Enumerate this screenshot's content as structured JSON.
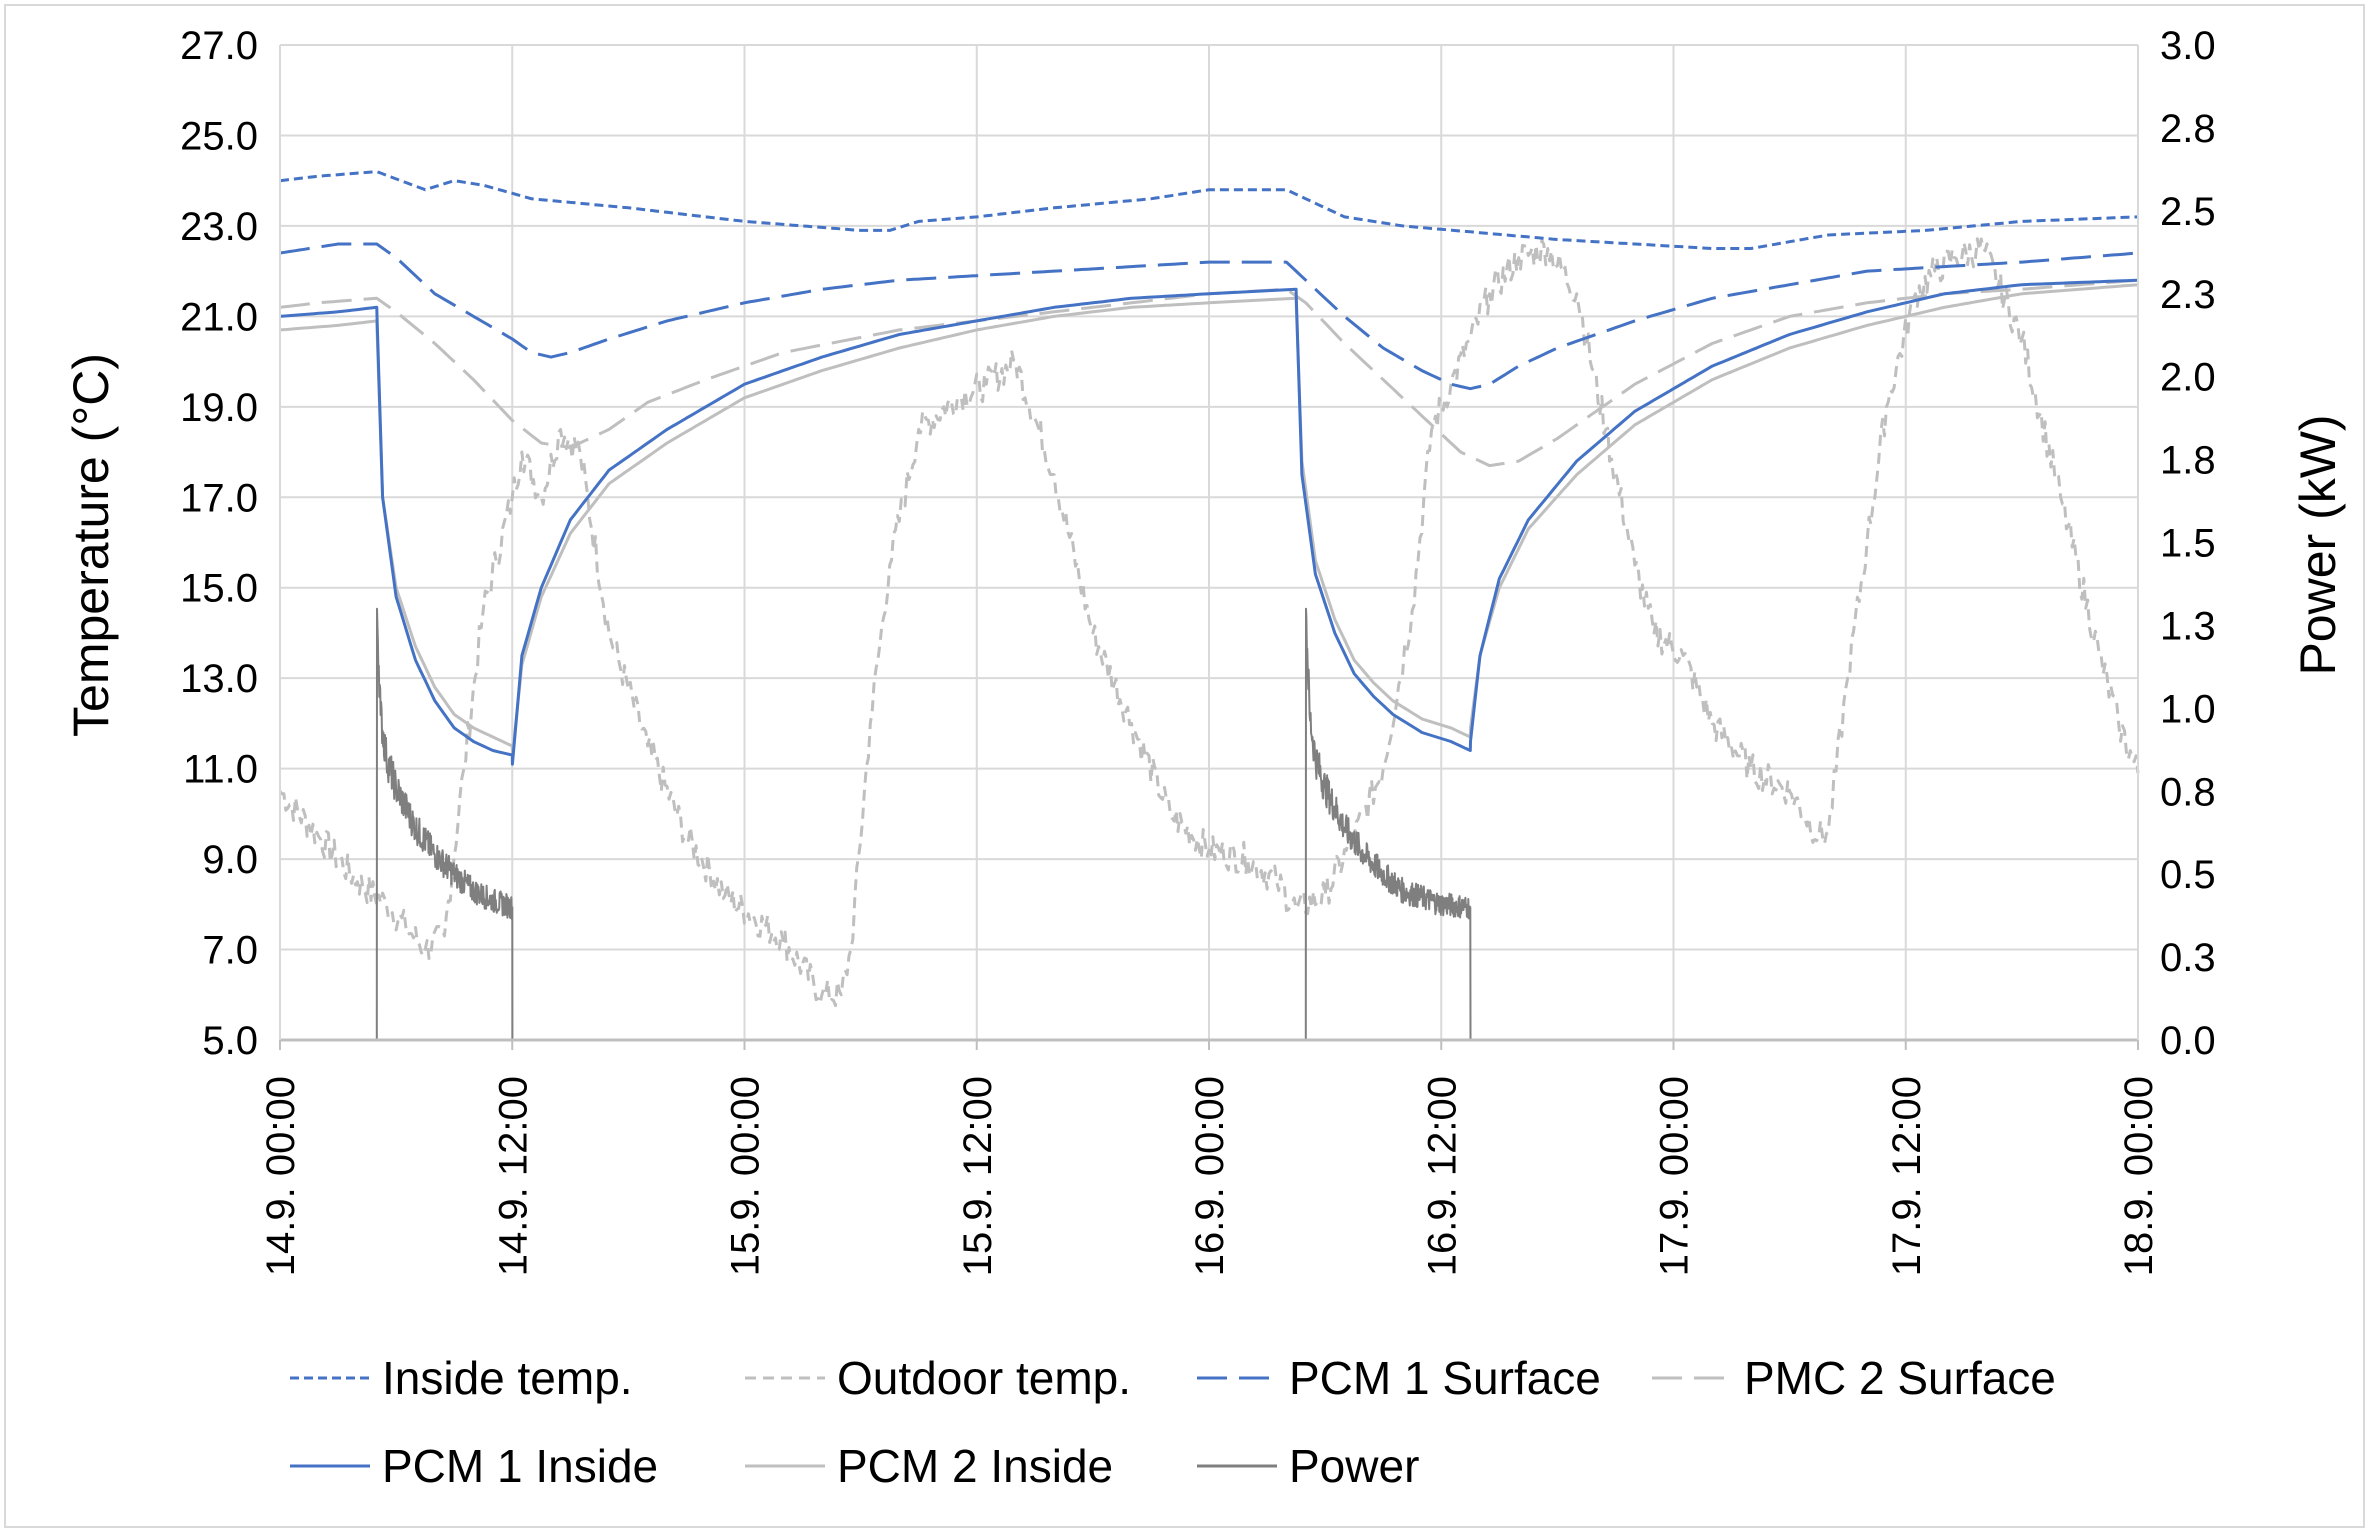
{
  "chart_data": {
    "type": "line",
    "title": "",
    "xlabel": "",
    "ylabel_left": "Temperature  (°C)",
    "ylabel_right": "Power (kW)",
    "ylim_left": [
      5,
      27
    ],
    "ylim_right": [
      0,
      3
    ],
    "yticks_left": [
      "5.0",
      "7.0",
      "9.0",
      "11.0",
      "13.0",
      "15.0",
      "17.0",
      "19.0",
      "21.0",
      "23.0",
      "25.0",
      "27.0"
    ],
    "yticks_right": [
      "0.0",
      "0.3",
      "0.5",
      "0.8",
      "1.0",
      "1.3",
      "1.5",
      "1.8",
      "2.0",
      "2.3",
      "2.5",
      "2.8",
      "3.0"
    ],
    "x_unit": "hours since 14.9. 00:00",
    "xlim": [
      0,
      96
    ],
    "xticks": [
      {
        "x": 0,
        "label": "14.9. 00:00"
      },
      {
        "x": 12,
        "label": "14.9. 12:00"
      },
      {
        "x": 24,
        "label": "15.9. 00:00"
      },
      {
        "x": 36,
        "label": "15.9. 12:00"
      },
      {
        "x": 48,
        "label": "16.9. 00:00"
      },
      {
        "x": 60,
        "label": "16.9. 12:00"
      },
      {
        "x": 72,
        "label": "17.9. 00:00"
      },
      {
        "x": 84,
        "label": "17.9. 12:00"
      },
      {
        "x": 96,
        "label": "18.9. 00:00"
      }
    ],
    "grid": true,
    "legend_position": "bottom",
    "series": [
      {
        "name": "Inside temp.",
        "axis": "left",
        "color": "#4472c4",
        "style": "dotted",
        "x": [
          0,
          2,
          5,
          7.5,
          9,
          10.5,
          13,
          18,
          24,
          30,
          31.5,
          33,
          36,
          40,
          45,
          48,
          52,
          53.5,
          55,
          58,
          66,
          74,
          76,
          80,
          85,
          90,
          96
        ],
        "y": [
          24.0,
          24.1,
          24.2,
          23.8,
          24.0,
          23.9,
          23.6,
          23.4,
          23.1,
          22.9,
          22.9,
          23.1,
          23.2,
          23.4,
          23.6,
          23.8,
          23.8,
          23.5,
          23.2,
          23.0,
          22.7,
          22.5,
          22.5,
          22.8,
          22.9,
          23.1,
          23.2
        ]
      },
      {
        "name": "Outdoor temp.",
        "axis": "left",
        "color": "#bfbfbf",
        "style": "dashed",
        "x": [
          0,
          2,
          4,
          5.5,
          6.5,
          7.5,
          8.5,
          9.5,
          10.5,
          12,
          12.5,
          13.5,
          14.5,
          15.5,
          17,
          19,
          21,
          23,
          26,
          28,
          29,
          29.5,
          30.5,
          31.5,
          33,
          35,
          36.5,
          38,
          40,
          42,
          44,
          46,
          48,
          50,
          51.5,
          52.5,
          54,
          55.5,
          57,
          58.5,
          59.5,
          60.5,
          61.5,
          62.5,
          64,
          65.5,
          67,
          68.5,
          70,
          71,
          72.5,
          74,
          76,
          78,
          79.5,
          80,
          81,
          82,
          83,
          84.5,
          85.5,
          86.5,
          88,
          90,
          92,
          94,
          95,
          96
        ],
        "y": [
          10.5,
          9.5,
          8.5,
          8.0,
          7.5,
          7.0,
          7.3,
          11.0,
          14.5,
          17.0,
          18.0,
          17.0,
          18.5,
          18.0,
          14.0,
          11.5,
          9.5,
          8.2,
          7.2,
          6.0,
          6.0,
          7.0,
          12.0,
          15.5,
          18.5,
          19.2,
          19.5,
          20.0,
          17.5,
          14.0,
          12.0,
          10.0,
          9.2,
          9.0,
          8.5,
          7.9,
          8.2,
          9.5,
          11.0,
          14.5,
          18.5,
          19.5,
          20.5,
          21.5,
          22.3,
          22.5,
          21.5,
          18.5,
          15.5,
          14.0,
          13.5,
          12.0,
          11.0,
          10.5,
          9.5,
          9.6,
          13.0,
          16.0,
          19.0,
          21.5,
          22.0,
          22.3,
          22.5,
          20.5,
          17.0,
          13.5,
          12.0,
          10.9
        ]
      },
      {
        "name": "PCM 1 Surface",
        "axis": "left",
        "color": "#4472c4",
        "style": "longdash",
        "x": [
          0,
          3,
          5,
          6,
          7,
          8,
          10,
          12,
          13,
          14,
          15,
          17,
          20,
          24,
          28,
          32,
          36,
          40,
          44,
          48,
          50,
          52,
          53,
          55,
          57,
          59,
          60.5,
          61.5,
          62.5,
          64,
          66,
          70,
          74,
          78,
          82,
          86,
          90,
          96
        ],
        "y": [
          22.4,
          22.6,
          22.6,
          22.3,
          21.9,
          21.5,
          21.0,
          20.5,
          20.2,
          20.1,
          20.2,
          20.5,
          20.9,
          21.3,
          21.6,
          21.8,
          21.9,
          22.0,
          22.1,
          22.2,
          22.2,
          22.2,
          21.8,
          21.0,
          20.3,
          19.8,
          19.5,
          19.4,
          19.5,
          19.9,
          20.3,
          20.9,
          21.4,
          21.7,
          22.0,
          22.1,
          22.2,
          22.4
        ]
      },
      {
        "name": "PMC 2 Surface",
        "axis": "left",
        "color": "#bfbfbf",
        "style": "longdash",
        "x": [
          0,
          2,
          5,
          6,
          8,
          10,
          12,
          13.5,
          15,
          17,
          19,
          22,
          26,
          32,
          40,
          48,
          52,
          53,
          55,
          57,
          59,
          61,
          62.5,
          64,
          66,
          70,
          74,
          78,
          82,
          86,
          90,
          96
        ],
        "y": [
          21.2,
          21.3,
          21.4,
          21.1,
          20.4,
          19.6,
          18.7,
          18.2,
          18.1,
          18.5,
          19.1,
          19.6,
          20.2,
          20.7,
          21.1,
          21.5,
          21.6,
          21.3,
          20.4,
          19.6,
          18.8,
          18.0,
          17.7,
          17.8,
          18.3,
          19.5,
          20.4,
          21.0,
          21.3,
          21.5,
          21.6,
          21.8
        ]
      },
      {
        "name": "PCM 1 Inside",
        "axis": "left",
        "color": "#4472c4",
        "style": "solid",
        "x": [
          0,
          3,
          5,
          5.01,
          5.3,
          6,
          7,
          8,
          9,
          10,
          11,
          12,
          12.01,
          12.5,
          13.5,
          15,
          17,
          20,
          24,
          28,
          32,
          36,
          40,
          44,
          48,
          52.5,
          52.51,
          52.8,
          53.5,
          54.5,
          55.5,
          56.5,
          57.5,
          59,
          60.5,
          61.5,
          61.51,
          62,
          63,
          64.5,
          67,
          70,
          74,
          78,
          82,
          86,
          90,
          96
        ],
        "y": [
          21.0,
          21.1,
          21.2,
          21.0,
          17.0,
          14.8,
          13.4,
          12.5,
          11.9,
          11.6,
          11.4,
          11.3,
          11.1,
          13.5,
          15.0,
          16.5,
          17.6,
          18.5,
          19.5,
          20.1,
          20.6,
          20.9,
          21.2,
          21.4,
          21.5,
          21.6,
          21.4,
          17.5,
          15.3,
          14.0,
          13.1,
          12.6,
          12.2,
          11.8,
          11.6,
          11.4,
          11.6,
          13.5,
          15.2,
          16.5,
          17.8,
          18.9,
          19.9,
          20.6,
          21.1,
          21.5,
          21.7,
          21.8
        ]
      },
      {
        "name": "PCM 2 Inside",
        "axis": "left",
        "color": "#bfbfbf",
        "style": "solid",
        "x": [
          0,
          3,
          5,
          5.01,
          5.3,
          6,
          7,
          8,
          9,
          10,
          11,
          12,
          12.01,
          12.5,
          13.5,
          15,
          17,
          20,
          24,
          28,
          32,
          36,
          40,
          44,
          48,
          52.5,
          52.51,
          52.8,
          53.5,
          54.5,
          55.5,
          56.5,
          57.5,
          59,
          60.5,
          61.5,
          61.51,
          62,
          63,
          64.5,
          67,
          70,
          74,
          78,
          82,
          86,
          90,
          96
        ],
        "y": [
          20.7,
          20.8,
          20.9,
          20.7,
          17.0,
          15.0,
          13.7,
          12.8,
          12.2,
          11.9,
          11.7,
          11.5,
          11.3,
          13.3,
          14.8,
          16.2,
          17.3,
          18.2,
          19.2,
          19.8,
          20.3,
          20.7,
          21.0,
          21.2,
          21.3,
          21.4,
          21.2,
          17.8,
          15.6,
          14.3,
          13.4,
          12.9,
          12.5,
          12.1,
          11.9,
          11.7,
          11.9,
          13.5,
          15.0,
          16.3,
          17.5,
          18.6,
          19.6,
          20.3,
          20.8,
          21.2,
          21.5,
          21.7
        ]
      },
      {
        "name": "Power",
        "axis": "right",
        "color": "#7f7f7f",
        "style": "solid",
        "x": [
          0,
          5,
          5.01,
          5.2,
          5.5,
          6,
          7,
          8,
          9,
          10,
          11,
          12,
          12.01,
          96
        ],
        "y": [
          0.0,
          0.0,
          1.3,
          0.98,
          0.85,
          0.76,
          0.64,
          0.56,
          0.5,
          0.45,
          0.42,
          0.4,
          0.0,
          0.0
        ],
        "x2": [
          12.01,
          53,
          53.01,
          53.2,
          53.5,
          54,
          55,
          56,
          57,
          58,
          59,
          60,
          61.5,
          61.51,
          96
        ],
        "y2": [
          0.0,
          0.0,
          1.3,
          0.98,
          0.85,
          0.76,
          0.64,
          0.56,
          0.5,
          0.45,
          0.43,
          0.41,
          0.4,
          0.0,
          0.0
        ]
      }
    ]
  }
}
